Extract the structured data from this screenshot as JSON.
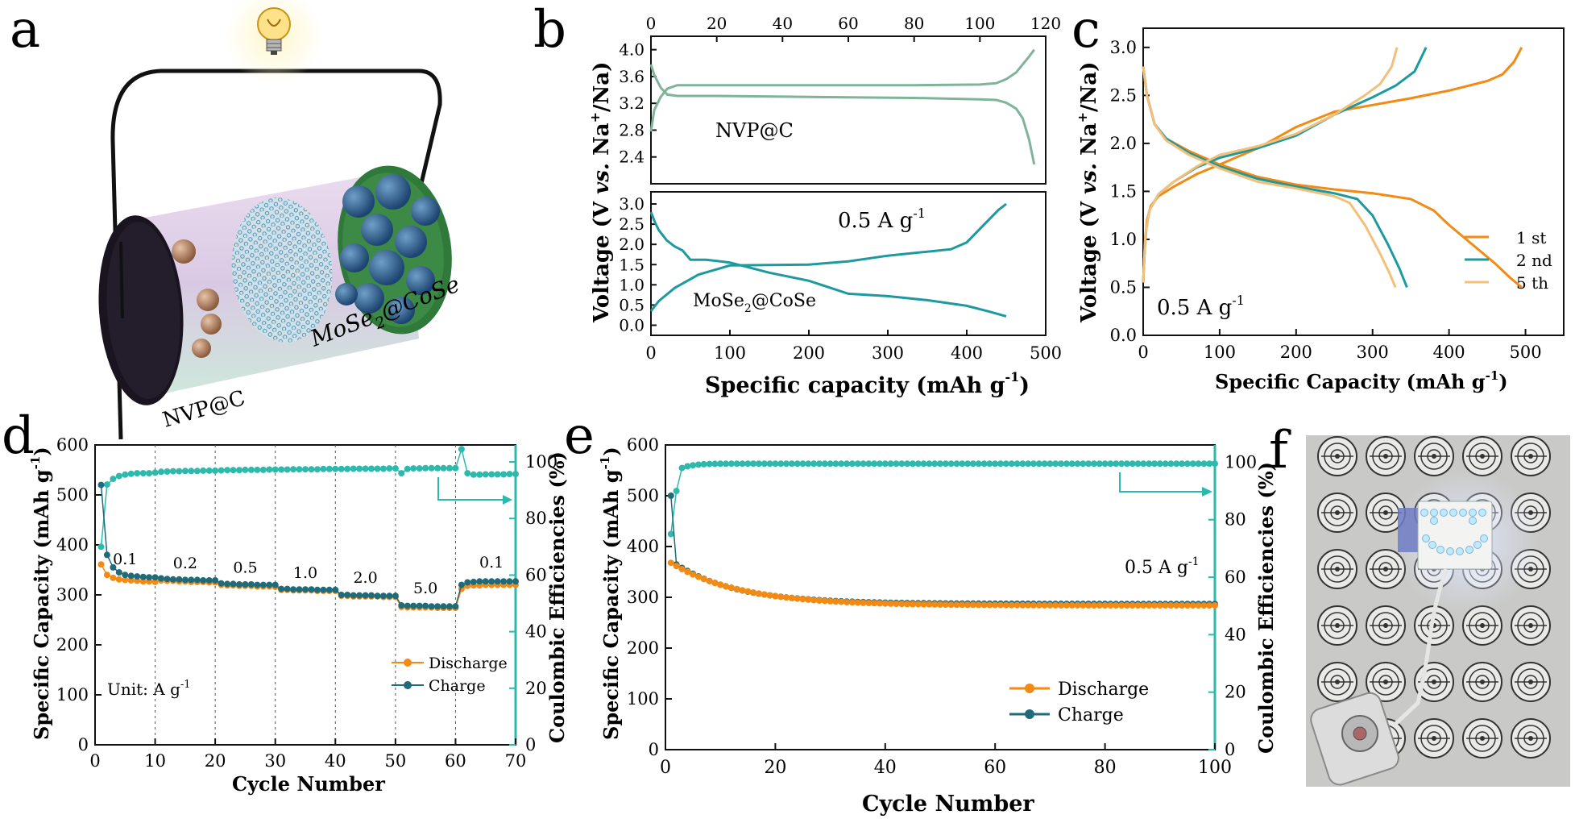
{
  "panels": {
    "a": {
      "letter": "a",
      "anode_label": "NVP@C",
      "cathode_label_main": "MoSe",
      "cathode_label_sub": "2",
      "cathode_label_tail": "@CoSe"
    },
    "b": {
      "letter": "b"
    },
    "c": {
      "letter": "c"
    },
    "d": {
      "letter": "d"
    },
    "e": {
      "letter": "e"
    },
    "f": {
      "letter": "f"
    }
  },
  "colors": {
    "orange": "#f38a14",
    "teal": "#1d9aa0",
    "dark_teal": "#1f6b7a",
    "light_teal": "#2db9ad",
    "peach": "#f3c07a",
    "sage": "#7fb39a",
    "teal_axis": "#2bb9ad"
  },
  "chart_data": [
    {
      "panel": "b-top",
      "type": "line",
      "xlim": [
        0,
        120
      ],
      "x_ticks": [
        "0",
        "20",
        "40",
        "60",
        "80",
        "100",
        "120"
      ],
      "ylim": [
        2.0,
        4.2
      ],
      "y_ticks": [
        "2.4",
        "2.8",
        "3.2",
        "3.6",
        "4.0"
      ],
      "annotation": "NVP@C",
      "series": [
        {
          "x": [
            0,
            1,
            3,
            5,
            8,
            20,
            40,
            60,
            80,
            100,
            105,
            108,
            111,
            113,
            115,
            116.5
          ],
          "y": [
            2.78,
            3.1,
            3.3,
            3.42,
            3.47,
            3.47,
            3.47,
            3.47,
            3.47,
            3.48,
            3.5,
            3.56,
            3.66,
            3.78,
            3.9,
            4.0
          ]
        },
        {
          "x": [
            0,
            1,
            3,
            5,
            8,
            20,
            40,
            60,
            80,
            100,
            105,
            108,
            111,
            113,
            115,
            116.5
          ],
          "y": [
            3.78,
            3.62,
            3.43,
            3.33,
            3.31,
            3.31,
            3.3,
            3.29,
            3.28,
            3.26,
            3.25,
            3.21,
            3.12,
            2.98,
            2.65,
            2.29
          ]
        }
      ]
    },
    {
      "panel": "b-bottom",
      "type": "line",
      "xlim": [
        0,
        500
      ],
      "x_ticks": [
        "0",
        "100",
        "200",
        "300",
        "400",
        "500"
      ],
      "xlabel_main": "Specific capacity (mAh g",
      "xlabel_sup": "-1",
      "xlabel_tail": ")",
      "ylim": [
        -0.25,
        3.3
      ],
      "y_ticks": [
        "0.0",
        "0.5",
        "1.0",
        "1.5",
        "2.0",
        "2.5",
        "3.0"
      ],
      "ylabel_main": "Voltage (V ",
      "ylabel_vs": "vs.",
      "ylabel_na": " Na",
      "ylabel_plus": "+",
      "ylabel_tail": "/Na)",
      "annotation_rate": "0.5 A g",
      "annotation_rate_sup": "-1",
      "annotation_mat_main": "MoSe",
      "annotation_mat_sub": "2",
      "annotation_mat_tail": "@CoSe",
      "series": [
        {
          "name_hidden": "discharge",
          "x": [
            0,
            5,
            10,
            20,
            30,
            40,
            50,
            70,
            100,
            150,
            200,
            250,
            300,
            350,
            400,
            430,
            450
          ],
          "y": [
            2.8,
            2.55,
            2.35,
            2.1,
            1.95,
            1.85,
            1.62,
            1.62,
            1.55,
            1.3,
            1.1,
            0.78,
            0.72,
            0.62,
            0.48,
            0.33,
            0.22
          ]
        },
        {
          "name_hidden": "charge",
          "x": [
            0,
            10,
            30,
            60,
            100,
            150,
            200,
            250,
            300,
            350,
            380,
            400,
            420,
            440,
            450
          ],
          "y": [
            0.35,
            0.6,
            0.92,
            1.25,
            1.48,
            1.49,
            1.5,
            1.58,
            1.72,
            1.82,
            1.88,
            2.05,
            2.45,
            2.85,
            3.0
          ]
        }
      ]
    },
    {
      "panel": "c",
      "type": "line",
      "xlim": [
        0,
        550
      ],
      "x_ticks": [
        "0",
        "100",
        "200",
        "300",
        "400",
        "500"
      ],
      "xlabel_main": "Specific Capacity (mAh g",
      "xlabel_sup": "-1",
      "xlabel_tail": ")",
      "ylim": [
        0,
        3.2
      ],
      "y_ticks": [
        "0.0",
        "0.5",
        "1.0",
        "1.5",
        "2.0",
        "2.5",
        "3.0"
      ],
      "ylabel_main": "Voltage (V ",
      "ylabel_vs": "vs.",
      "ylabel_na": " Na",
      "ylabel_plus": "+",
      "ylabel_tail": "/Na)",
      "annotation_main": "0.5 A g",
      "annotation_sup": "-1",
      "legend": [
        "1 st",
        "2 nd",
        "5 th"
      ],
      "series": [
        {
          "name": "1 st",
          "discharge": {
            "x": [
              0,
              5,
              15,
              30,
              60,
              100,
              150,
              200,
              250,
              300,
              350,
              380,
              400,
              430,
              460,
              480,
              495
            ],
            "y": [
              2.8,
              2.5,
              2.2,
              2.05,
              1.92,
              1.78,
              1.65,
              1.57,
              1.52,
              1.48,
              1.42,
              1.3,
              1.15,
              0.95,
              0.75,
              0.6,
              0.5
            ]
          },
          "charge": {
            "x": [
              0,
              2,
              5,
              10,
              20,
              40,
              70,
              100,
              150,
              200,
              250,
              300,
              350,
              400,
              450,
              470,
              485,
              495
            ],
            "y": [
              0.55,
              0.9,
              1.2,
              1.35,
              1.45,
              1.55,
              1.68,
              1.78,
              1.95,
              2.17,
              2.33,
              2.4,
              2.47,
              2.55,
              2.65,
              2.72,
              2.85,
              3.0
            ]
          }
        },
        {
          "name": "2 nd",
          "discharge": {
            "x": [
              0,
              5,
              15,
              30,
              60,
              100,
              150,
              200,
              250,
              280,
              300,
              320,
              335,
              345
            ],
            "y": [
              2.8,
              2.5,
              2.2,
              2.05,
              1.9,
              1.76,
              1.63,
              1.55,
              1.48,
              1.42,
              1.25,
              0.95,
              0.7,
              0.5
            ]
          },
          "charge": {
            "x": [
              0,
              3,
              8,
              20,
              40,
              70,
              100,
              150,
              200,
              250,
              300,
              330,
              355,
              370
            ],
            "y": [
              0.55,
              1.05,
              1.3,
              1.47,
              1.6,
              1.75,
              1.85,
              1.95,
              2.08,
              2.3,
              2.48,
              2.6,
              2.75,
              3.0
            ]
          }
        },
        {
          "name": "5 th",
          "discharge": {
            "x": [
              0,
              5,
              15,
              30,
              60,
              100,
              150,
              200,
              250,
              270,
              290,
              310,
              322,
              330
            ],
            "y": [
              2.8,
              2.5,
              2.2,
              2.03,
              1.88,
              1.74,
              1.6,
              1.53,
              1.45,
              1.38,
              1.15,
              0.85,
              0.65,
              0.5
            ]
          },
          "charge": {
            "x": [
              0,
              3,
              8,
              20,
              40,
              70,
              100,
              150,
              200,
              250,
              290,
              310,
              325,
              332
            ],
            "y": [
              0.55,
              1.05,
              1.3,
              1.47,
              1.6,
              1.76,
              1.88,
              1.97,
              2.1,
              2.3,
              2.5,
              2.62,
              2.8,
              3.0
            ]
          }
        }
      ]
    },
    {
      "panel": "d",
      "type": "scatter",
      "xlim": [
        0,
        70
      ],
      "x_ticks": [
        "0",
        "10",
        "20",
        "30",
        "40",
        "50",
        "60",
        "70"
      ],
      "xlabel": "Cycle Number",
      "ylim": [
        0,
        600
      ],
      "y_ticks": [
        "0",
        "100",
        "200",
        "300",
        "400",
        "500",
        "600"
      ],
      "ylabel_main": "Specific Capacity (mAh g",
      "ylabel_sup": "-1",
      "ylabel_tail": ")",
      "y2lim": [
        0,
        106
      ],
      "y2_ticks": [
        "0",
        "20",
        "40",
        "60",
        "80",
        "100"
      ],
      "y2label": "Coulombic Efficiencies (%)",
      "rate_labels": [
        "0.1",
        "0.2",
        "0.5",
        "1.0",
        "2.0",
        "5.0",
        "0.1"
      ],
      "unit_main": "Unit: A g",
      "unit_sup": "-1",
      "legend": [
        "Discharge",
        "Charge"
      ],
      "discharge": [
        361,
        340,
        334,
        331,
        330,
        329,
        328,
        327,
        327,
        326,
        329,
        328,
        328,
        327,
        327,
        326,
        326,
        326,
        325,
        325,
        320,
        319,
        319,
        318,
        318,
        318,
        317,
        317,
        317,
        316,
        310,
        310,
        309,
        309,
        309,
        309,
        308,
        308,
        308,
        308,
        298,
        298,
        297,
        297,
        297,
        297,
        297,
        296,
        296,
        296,
        276,
        275,
        275,
        275,
        275,
        275,
        274,
        274,
        274,
        274,
        312,
        318,
        319,
        319,
        320,
        320,
        320,
        320,
        320,
        320
      ],
      "charge": [
        520,
        380,
        355,
        345,
        340,
        338,
        337,
        336,
        335,
        335,
        333,
        332,
        331,
        331,
        330,
        330,
        330,
        329,
        329,
        329,
        323,
        322,
        322,
        321,
        321,
        321,
        320,
        320,
        320,
        320,
        312,
        312,
        311,
        311,
        311,
        311,
        310,
        310,
        310,
        310,
        300,
        300,
        299,
        299,
        299,
        299,
        298,
        298,
        298,
        298,
        279,
        278,
        278,
        278,
        278,
        277,
        277,
        277,
        277,
        277,
        320,
        325,
        326,
        327,
        327,
        327,
        327,
        327,
        327,
        327
      ],
      "coulombic_efficiency": [
        70,
        92,
        94,
        95,
        95.5,
        95.8,
        96,
        96,
        96,
        96.2,
        96.5,
        96.6,
        96.7,
        96.7,
        96.8,
        96.8,
        96.8,
        96.9,
        96.9,
        96.9,
        97,
        97.1,
        97.1,
        97.1,
        97.2,
        97.2,
        97.2,
        97.2,
        97.3,
        97.3,
        97.3,
        97.3,
        97.4,
        97.4,
        97.4,
        97.4,
        97.4,
        97.5,
        97.5,
        97.5,
        97.5,
        97.5,
        97.6,
        97.6,
        97.6,
        97.6,
        97.6,
        97.6,
        97.7,
        97.7,
        96,
        97.5,
        97.7,
        97.7,
        97.8,
        97.8,
        97.8,
        97.8,
        97.8,
        97.8,
        104.5,
        96,
        95.5,
        95.5,
        95.6,
        95.6,
        95.6,
        95.6,
        95.7,
        95.7
      ]
    },
    {
      "panel": "e",
      "type": "scatter",
      "xlim": [
        0,
        100
      ],
      "x_ticks": [
        "0",
        "20",
        "40",
        "60",
        "80",
        "100"
      ],
      "xlabel": "Cycle Number",
      "ylim": [
        0,
        600
      ],
      "y_ticks": [
        "0",
        "100",
        "200",
        "300",
        "400",
        "500",
        "600"
      ],
      "ylabel_main": "Specific Capacity (mAh g",
      "ylabel_sup": "-1",
      "ylabel_tail": ")",
      "y2lim": [
        0,
        106
      ],
      "y2_ticks": [
        "0",
        "20",
        "40",
        "60",
        "80",
        "100"
      ],
      "y2label": "Coulombic Efficiencies (%)",
      "annotation_main": "0.5 A g",
      "annotation_sup": "-1",
      "legend": [
        "Discharge",
        "Charge"
      ],
      "discharge_start": 368,
      "discharge_end": 284,
      "charge_start": 500,
      "charge_end": 287,
      "ce_first": 75,
      "ce_plateau": 99.5
    }
  ]
}
